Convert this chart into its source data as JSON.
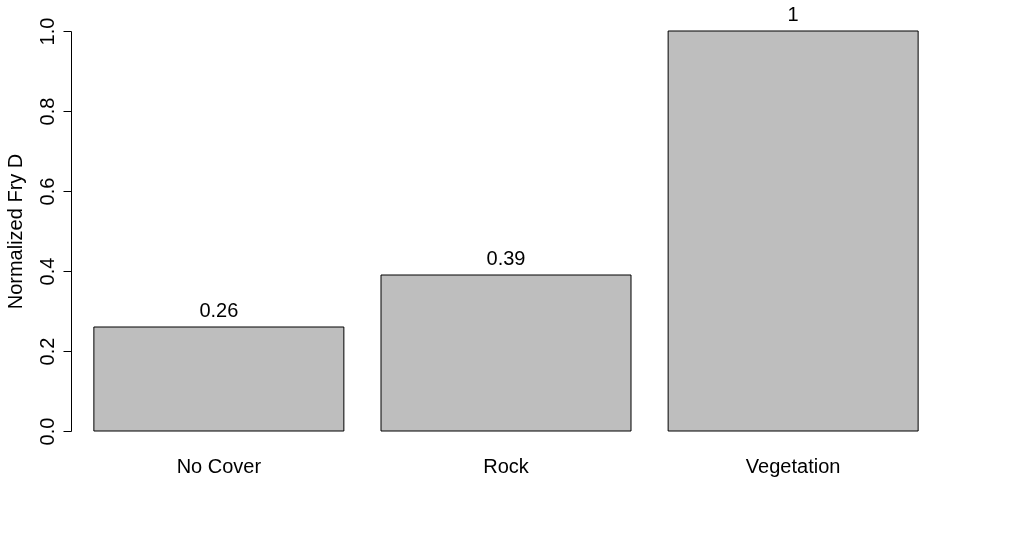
{
  "chart_data": {
    "type": "bar",
    "ylabel": "Normalized Fry D",
    "categories": [
      "No Cover",
      "Rock",
      "Vegetation"
    ],
    "values": [
      0.26,
      0.39,
      1
    ],
    "color": "#bebebe",
    "ylim": [
      0,
      1
    ],
    "yticks": [
      {
        "value": 0,
        "label": "0.0"
      },
      0.2,
      0.4,
      0.6,
      0.8,
      {
        "value": 1,
        "label": "1.0"
      }
    ],
    "grid": false,
    "data_labels": true
  }
}
